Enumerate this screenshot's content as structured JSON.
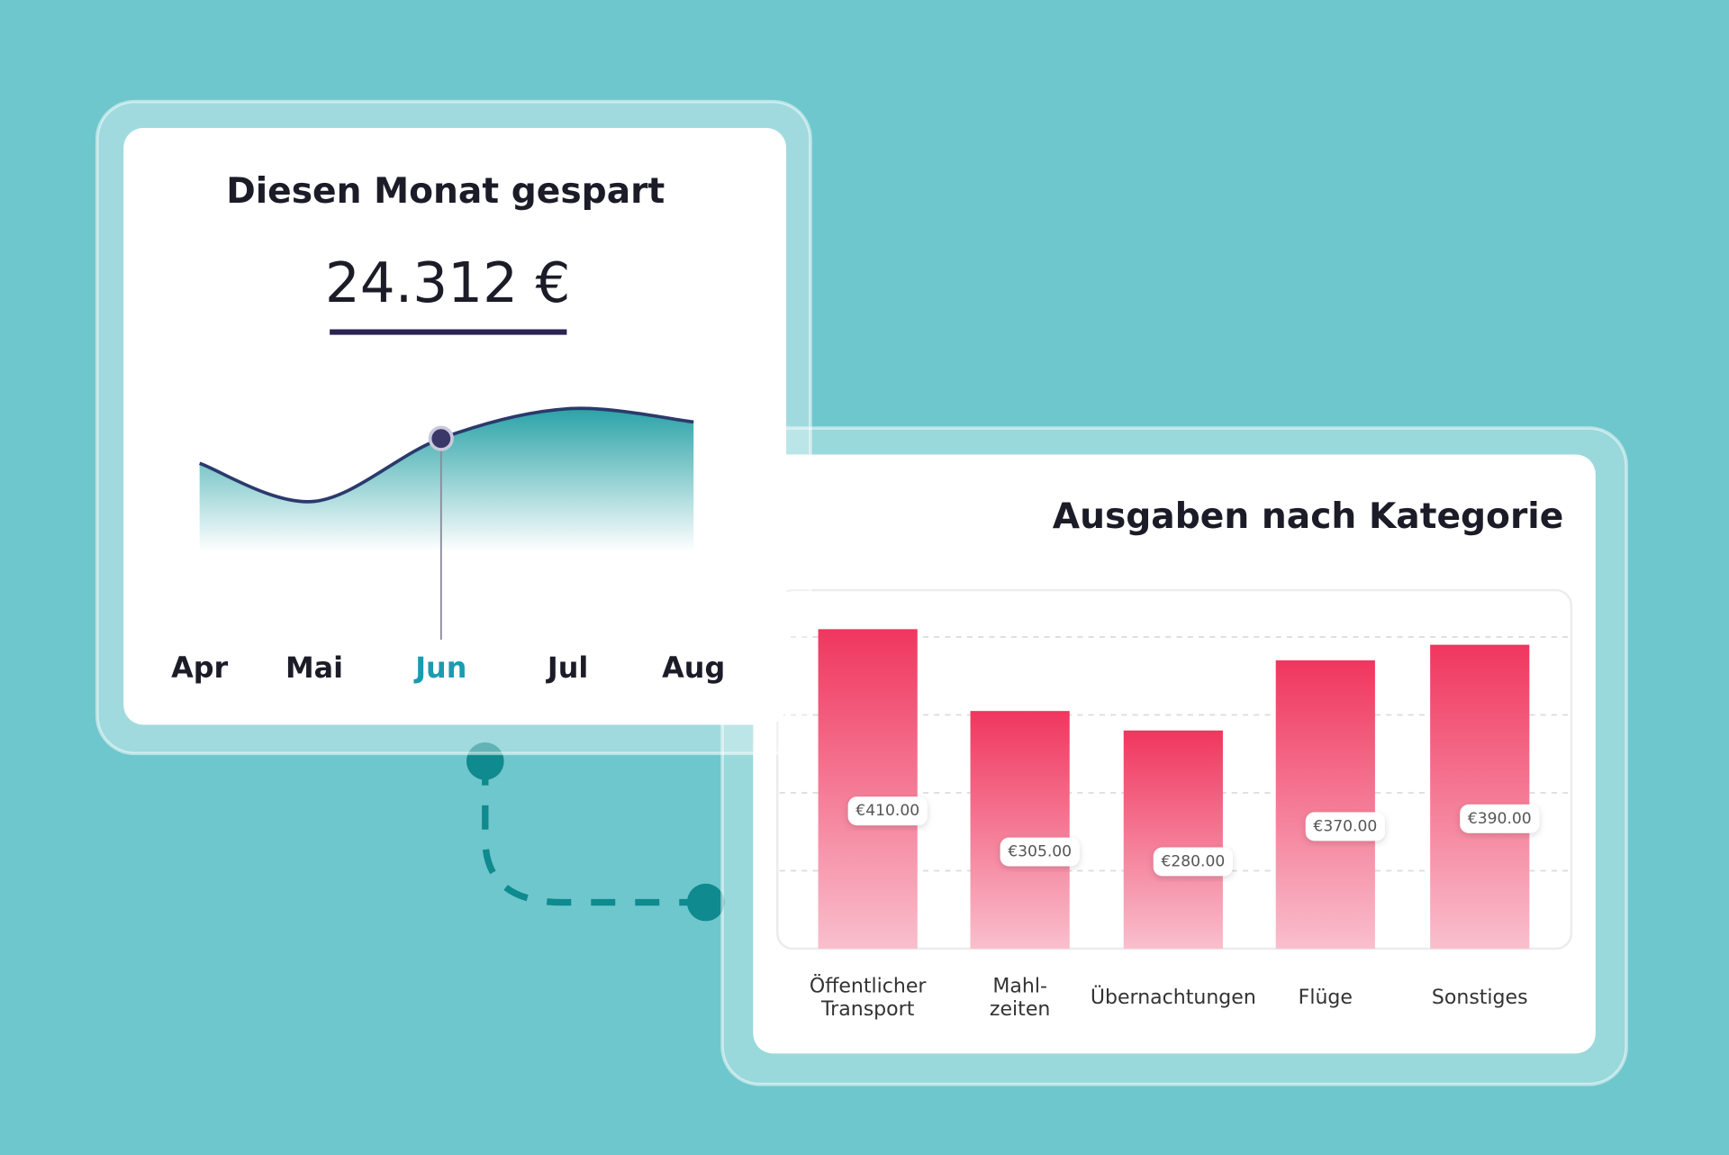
{
  "chart_data": [
    {
      "type": "line",
      "title": "Diesen Monat gespart",
      "headline": "24.312 €",
      "categories": [
        "Apr",
        "Mai",
        "Jun",
        "Jul",
        "Aug"
      ],
      "values": [
        40,
        17,
        55,
        73,
        65
      ],
      "ylim": [
        0,
        100
      ],
      "color": "#1f9ea3",
      "highlight_index": 2,
      "highlight_color": "#1a9bb0"
    },
    {
      "type": "bar",
      "title": "Ausgaben nach Kategorie",
      "categories": [
        "Öffentlicher\nTransport",
        "Mahl-\nzeiten",
        "Übernachtungen",
        "Flüge",
        "Sonstiges"
      ],
      "values": [
        410,
        305,
        280,
        370,
        390
      ],
      "value_labels": [
        "€410.00",
        "€305.00",
        "€280.00",
        "€370.00",
        "€390.00"
      ],
      "ylim": [
        0,
        460
      ],
      "gridlines": [
        100,
        200,
        300,
        400
      ],
      "color": "#f0365e"
    }
  ]
}
